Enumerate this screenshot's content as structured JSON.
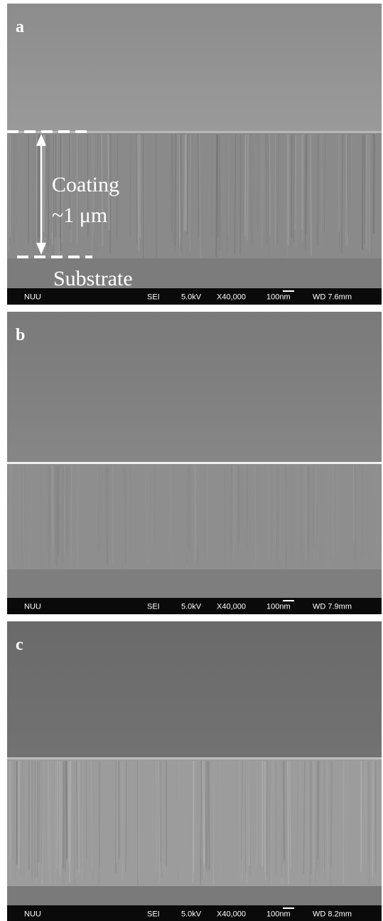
{
  "panels": [
    {
      "label": "a",
      "info": {
        "source": "NUU",
        "mode": "SEI",
        "voltage": "5.0kV",
        "magnification": "X40,000",
        "scale": "100nm",
        "wd": "WD 7.6mm"
      },
      "annotations": {
        "coating": "Coating",
        "thickness": "~1 μm",
        "substrate": "Substrate"
      }
    },
    {
      "label": "b",
      "info": {
        "source": "NUU",
        "mode": "SEI",
        "voltage": "5.0kV",
        "magnification": "X40,000",
        "scale": "100nm",
        "wd": "WD 7.9mm"
      }
    },
    {
      "label": "c",
      "info": {
        "source": "NUU",
        "mode": "SEI",
        "voltage": "5.0kV",
        "magnification": "X40,000",
        "scale": "100nm",
        "wd": "WD 8.2mm"
      }
    }
  ]
}
